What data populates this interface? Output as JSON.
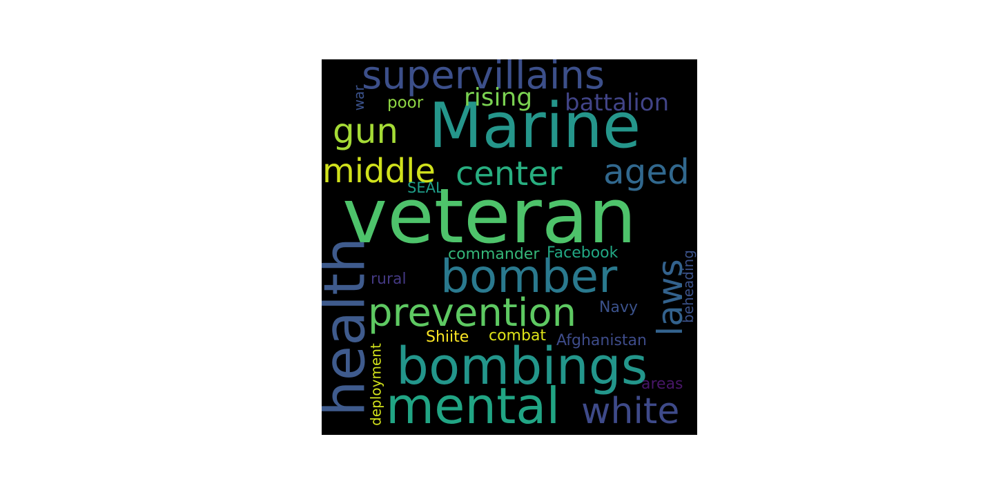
{
  "words": {
    "veteran": {
      "text": "veteran",
      "color": "#4ec36b"
    },
    "marine": {
      "text": "Marine",
      "color": "#25968b"
    },
    "health": {
      "text": "health",
      "color": "#3f5b8d"
    },
    "bombings": {
      "text": "bombings",
      "color": "#23968b"
    },
    "mental": {
      "text": "mental",
      "color": "#21a584"
    },
    "bomber": {
      "text": "bomber",
      "color": "#2a798e"
    },
    "prevention": {
      "text": "prevention",
      "color": "#5ec962"
    },
    "supervillains": {
      "text": "supervillains",
      "color": "#3c4f8a"
    },
    "center": {
      "text": "center",
      "color": "#28ae80"
    },
    "middle": {
      "text": "middle",
      "color": "#d0e11c"
    },
    "aged": {
      "text": "aged",
      "color": "#31688e"
    },
    "gun": {
      "text": "gun",
      "color": "#a5db36"
    },
    "white": {
      "text": "white",
      "color": "#3e4a89"
    },
    "laws": {
      "text": "laws",
      "color": "#33628d"
    },
    "battalion": {
      "text": "battalion",
      "color": "#414487"
    },
    "rising": {
      "text": "rising",
      "color": "#7ad151"
    },
    "poor": {
      "text": "poor",
      "color": "#8fd744"
    },
    "war": {
      "text": "war",
      "color": "#3b528b"
    },
    "SEAL": {
      "text": "SEAL",
      "color": "#1f9e89"
    },
    "commander": {
      "text": "commander",
      "color": "#35b779"
    },
    "Facebook": {
      "text": "Facebook",
      "color": "#22a884"
    },
    "rural": {
      "text": "rural",
      "color": "#443983"
    },
    "Navy": {
      "text": "Navy",
      "color": "#3b528b"
    },
    "beheading": {
      "text": "beheading",
      "color": "#3b5289"
    },
    "Shiite": {
      "text": "Shiite",
      "color": "#fde725"
    },
    "combat": {
      "text": "combat",
      "color": "#dde318"
    },
    "Afghanistan": {
      "text": "Afghanistan",
      "color": "#3e4c8a"
    },
    "deployment": {
      "text": "deployment",
      "color": "#d2e21b"
    },
    "areas": {
      "text": "areas",
      "color": "#481668"
    }
  }
}
